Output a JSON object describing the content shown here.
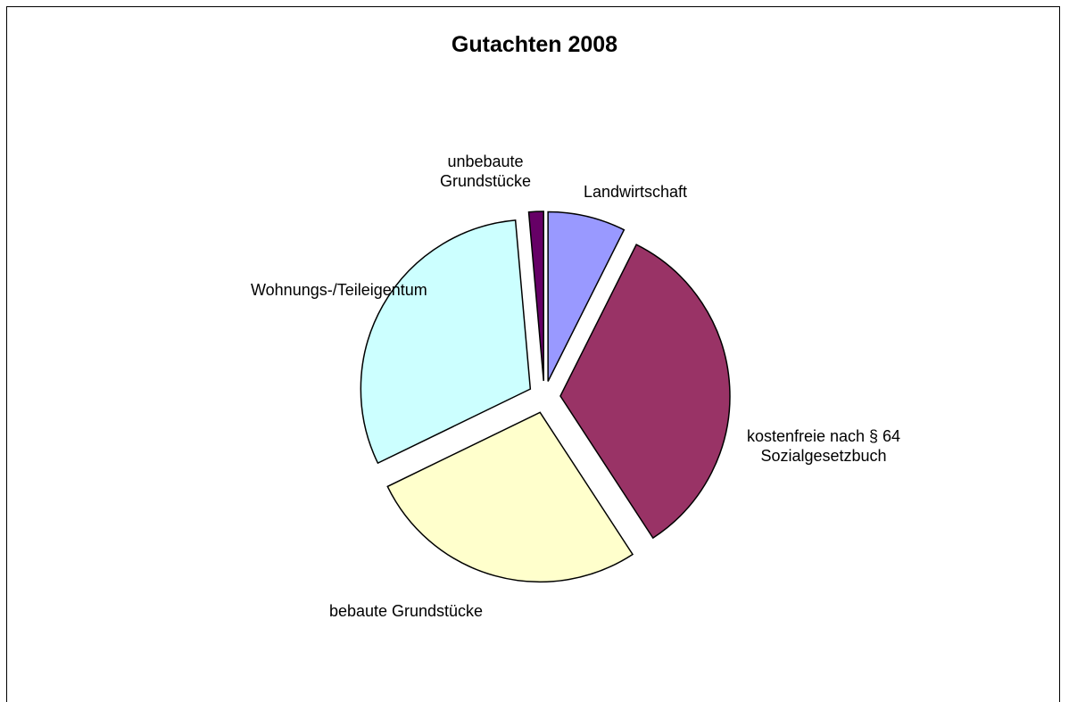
{
  "chart_data": {
    "type": "pie",
    "title": "Gutachten 2008",
    "categories": [
      "Landwirtschaft",
      "kostenfreie nach § 64 Sozialgesetzbuch",
      "bebaute Grundstücke",
      "Wohnungs-/Teileigentum",
      "unbebaute Grundstücke"
    ],
    "values": [
      7.4,
      33.4,
      27,
      30.8,
      1.4
    ],
    "colors": [
      "#9999ff",
      "#993366",
      "#ffffcc",
      "#ccffff",
      "#660066"
    ]
  }
}
